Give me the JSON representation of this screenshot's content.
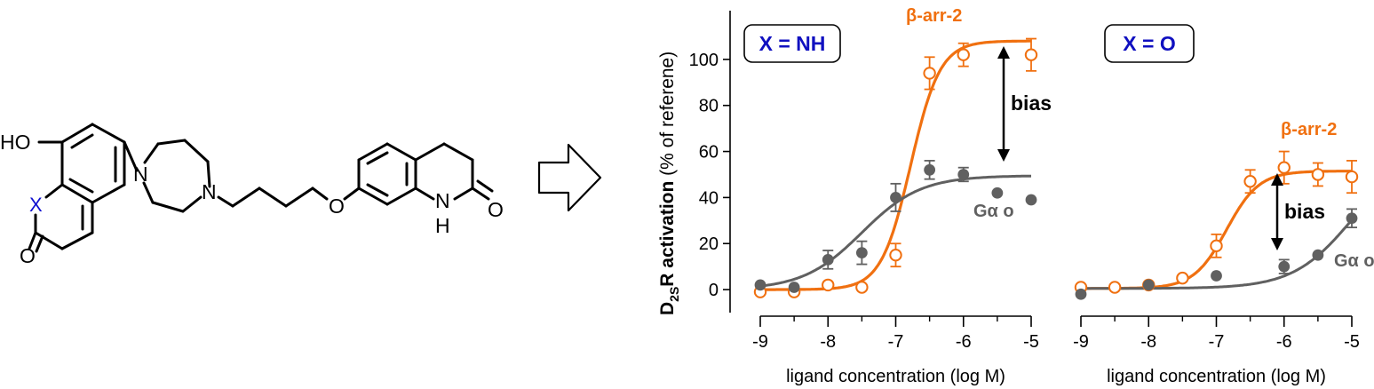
{
  "structure": {
    "atom_labels": {
      "ho": "HO",
      "x": "X",
      "o_carbonyl_left": "O",
      "n1": "N",
      "n2": "N",
      "o_ether": "O",
      "nh_n": "N",
      "nh_h": "H",
      "o_carbonyl_right": "O"
    },
    "x_color": "#1010d0"
  },
  "colors": {
    "barr2": "#f07010",
    "gao": "#606060",
    "panel_box_text": "#1010c0"
  },
  "y_axis": {
    "label_bold_prefix": "D",
    "label_sub": "2S",
    "label_bold_suffix": "R activation",
    "label_plain": " (% of referene)",
    "ticks": [
      "0",
      "20",
      "40",
      "60",
      "80",
      "100"
    ],
    "ylim": [
      -10,
      115
    ]
  },
  "chart_data": [
    {
      "type": "scatter",
      "panel_label": "X = NH",
      "xlabel": "ligand concentration (log M)",
      "xticks": [
        "-9",
        "-8",
        "-7",
        "-6",
        "-5"
      ],
      "xlim": [
        -9,
        -5
      ],
      "ylim": [
        -10,
        115
      ],
      "annotation": "bias",
      "series": [
        {
          "name": "β-arr-2",
          "marker": "open-circle",
          "x": [
            -9,
            -8.5,
            -8,
            -7.5,
            -7,
            -6.5,
            -6,
            -5
          ],
          "y": [
            -1,
            -1,
            2,
            1,
            15,
            94,
            102,
            102
          ],
          "err": [
            0,
            0,
            0,
            0,
            5,
            7,
            5,
            7
          ],
          "fit": {
            "bottom": 0,
            "top": 108,
            "logec50": -6.78,
            "hill": 2.0
          }
        },
        {
          "name": "Gα o",
          "marker": "filled-circle",
          "x": [
            -9,
            -8.5,
            -8,
            -7.5,
            -7,
            -6.5,
            -6,
            -5.5,
            -5
          ],
          "y": [
            2,
            1,
            13,
            16,
            40,
            52,
            50,
            42,
            39
          ],
          "err": [
            0,
            0,
            4,
            5,
            6,
            4,
            3,
            0,
            0
          ],
          "fit": {
            "bottom": 0,
            "top": 49.5,
            "logec50": -7.5,
            "hill": 1.0
          }
        }
      ]
    },
    {
      "type": "scatter",
      "panel_label": "X = O",
      "xlabel": "ligand concentration (log M)",
      "xticks": [
        "-9",
        "-8",
        "-7",
        "-6",
        "-5"
      ],
      "xlim": [
        -9,
        -5
      ],
      "ylim": [
        -10,
        115
      ],
      "annotation": "bias",
      "series": [
        {
          "name": "β-arr-2",
          "marker": "open-circle",
          "x": [
            -9,
            -8.5,
            -8,
            -7.5,
            -7,
            -6.5,
            -6,
            -5.5,
            -5
          ],
          "y": [
            1,
            1,
            2,
            5,
            19,
            47,
            53,
            50,
            49
          ],
          "err": [
            0,
            0,
            0,
            0,
            5,
            5,
            7,
            5,
            7
          ],
          "fit": {
            "bottom": 0.5,
            "top": 51.5,
            "logec50": -6.85,
            "hill": 1.8
          }
        },
        {
          "name": "Gα o",
          "marker": "filled-circle",
          "x": [
            -9,
            -8,
            -7,
            -6,
            -5.5,
            -5
          ],
          "y": [
            -2,
            2,
            6,
            10,
            15,
            31
          ],
          "err": [
            0,
            0,
            0,
            3,
            0,
            4
          ],
          "fit": {
            "bottom": 0.5,
            "top": 60,
            "logec50": -5.0,
            "hill": 1.0
          }
        }
      ]
    }
  ]
}
